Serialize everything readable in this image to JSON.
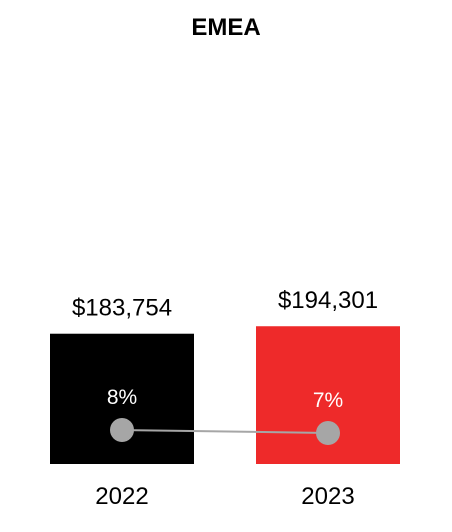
{
  "chart_data": {
    "type": "bar",
    "title": "EMEA",
    "categories": [
      "2022",
      "2023"
    ],
    "values": [
      183754,
      194301
    ],
    "value_labels": [
      "$183,754",
      "$194,301"
    ],
    "bar_colors": [
      "#000000",
      "#ee2a2a"
    ],
    "line_series": {
      "values": [
        8,
        7
      ],
      "labels": [
        "8%",
        "7%"
      ],
      "color": "#a6a6a6"
    },
    "grid": false,
    "legend": "none"
  }
}
